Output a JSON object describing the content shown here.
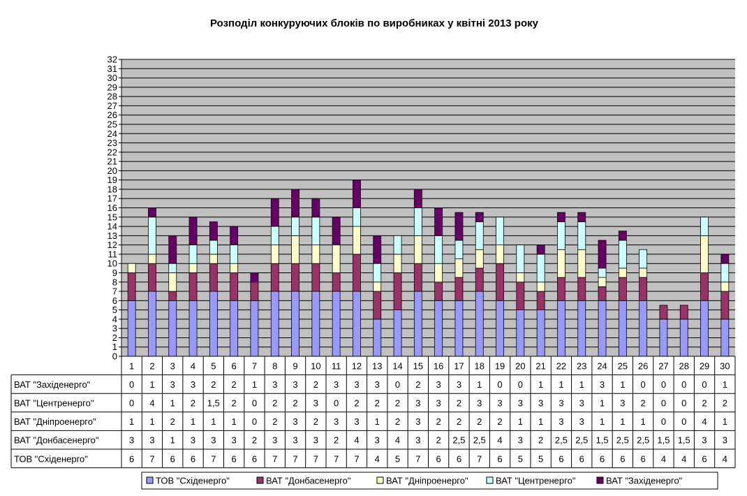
{
  "chart_data": {
    "type": "bar",
    "stacked": true,
    "title": "Розподіл конкуруючих блоків по виробниках у квітні 2013 року",
    "categories": [
      "1",
      "2",
      "3",
      "4",
      "5",
      "6",
      "7",
      "8",
      "9",
      "10",
      "11",
      "12",
      "13",
      "14",
      "15",
      "16",
      "17",
      "18",
      "19",
      "20",
      "21",
      "22",
      "23",
      "24",
      "25",
      "26",
      "27",
      "28",
      "29",
      "30"
    ],
    "ylim": [
      0,
      32
    ],
    "y_ticks": [
      "0",
      "1",
      "2",
      "3",
      "4",
      "5",
      "6",
      "7",
      "8",
      "9",
      "10",
      "11",
      "12",
      "13",
      "14",
      "15",
      "16",
      "17",
      "18",
      "19",
      "20",
      "21",
      "22",
      "23",
      "24",
      "25",
      "26",
      "27",
      "28",
      "29",
      "30",
      "31",
      "32"
    ],
    "grid": true,
    "legend_position": "bottom",
    "series": [
      {
        "name": "ТОВ \"Східенерго\"",
        "color": "#9999ff",
        "values": [
          6,
          7,
          6,
          6,
          7,
          6,
          6,
          7,
          7,
          7,
          7,
          7,
          4,
          5,
          7,
          6,
          6,
          7,
          6,
          5,
          5,
          6,
          6,
          6,
          6,
          6,
          4,
          4,
          6,
          4
        ],
        "labels": [
          "6",
          "7",
          "6",
          "6",
          "7",
          "6",
          "6",
          "7",
          "7",
          "7",
          "7",
          "7",
          "4",
          "5",
          "7",
          "6",
          "6",
          "7",
          "6",
          "5",
          "5",
          "6",
          "6",
          "6",
          "6",
          "6",
          "4",
          "4",
          "6",
          "4"
        ]
      },
      {
        "name": "ВАТ \"Донбасенерго\"",
        "color": "#993366",
        "values": [
          3,
          3,
          1,
          3,
          3,
          3,
          2,
          3,
          3,
          3,
          2,
          4,
          3,
          4,
          3,
          2,
          2.5,
          2.5,
          4,
          3,
          2,
          2.5,
          2.5,
          1.5,
          2.5,
          2.5,
          1.5,
          1.5,
          3,
          3
        ],
        "labels": [
          "3",
          "3",
          "1",
          "3",
          "3",
          "3",
          "2",
          "3",
          "3",
          "3",
          "2",
          "4",
          "3",
          "4",
          "3",
          "2",
          "2,5",
          "2,5",
          "4",
          "3",
          "2",
          "2,5",
          "2,5",
          "1,5",
          "2,5",
          "2,5",
          "1,5",
          "1,5",
          "3",
          "3"
        ]
      },
      {
        "name": "ВАТ \"Дніпроенерго\"",
        "color": "#ffffcc",
        "values": [
          1,
          1,
          2,
          1,
          1,
          1,
          0,
          2,
          3,
          2,
          3,
          3,
          1,
          2,
          3,
          2,
          2,
          2,
          2,
          1,
          1,
          3,
          3,
          1,
          1,
          1,
          0,
          0,
          4,
          1
        ],
        "labels": [
          "1",
          "1",
          "2",
          "1",
          "1",
          "1",
          "0",
          "2",
          "3",
          "2",
          "3",
          "3",
          "1",
          "2",
          "3",
          "2",
          "2",
          "2",
          "2",
          "1",
          "1",
          "3",
          "3",
          "1",
          "1",
          "1",
          "0",
          "0",
          "4",
          "1"
        ]
      },
      {
        "name": "ВАТ \"Центренерго\"",
        "color": "#ccffff",
        "values": [
          0,
          4,
          1,
          2,
          1.5,
          2,
          0,
          2,
          2,
          3,
          0,
          2,
          2,
          2,
          3,
          3,
          2,
          3,
          3,
          3,
          3,
          3,
          3,
          1,
          3,
          2,
          0,
          0,
          2,
          2
        ],
        "labels": [
          "0",
          "4",
          "1",
          "2",
          "1,5",
          "2",
          "0",
          "2",
          "2",
          "3",
          "0",
          "2",
          "2",
          "2",
          "3",
          "3",
          "2",
          "3",
          "3",
          "3",
          "3",
          "3",
          "3",
          "1",
          "3",
          "2",
          "0",
          "0",
          "2",
          "2"
        ]
      },
      {
        "name": "ВАТ \"Західенерго\"",
        "color": "#660066",
        "values": [
          0,
          1,
          3,
          3,
          2,
          2,
          1,
          3,
          3,
          2,
          3,
          3,
          3,
          0,
          2,
          3,
          3,
          1,
          0,
          0,
          1,
          1,
          1,
          3,
          1,
          0,
          0,
          0,
          0,
          1
        ],
        "labels": [
          "0",
          "1",
          "3",
          "3",
          "2",
          "2",
          "1",
          "3",
          "3",
          "2",
          "3",
          "3",
          "3",
          "0",
          "2",
          "3",
          "3",
          "1",
          "0",
          "0",
          "1",
          "1",
          "1",
          "3",
          "1",
          "0",
          "0",
          "0",
          "0",
          "1"
        ]
      }
    ]
  }
}
